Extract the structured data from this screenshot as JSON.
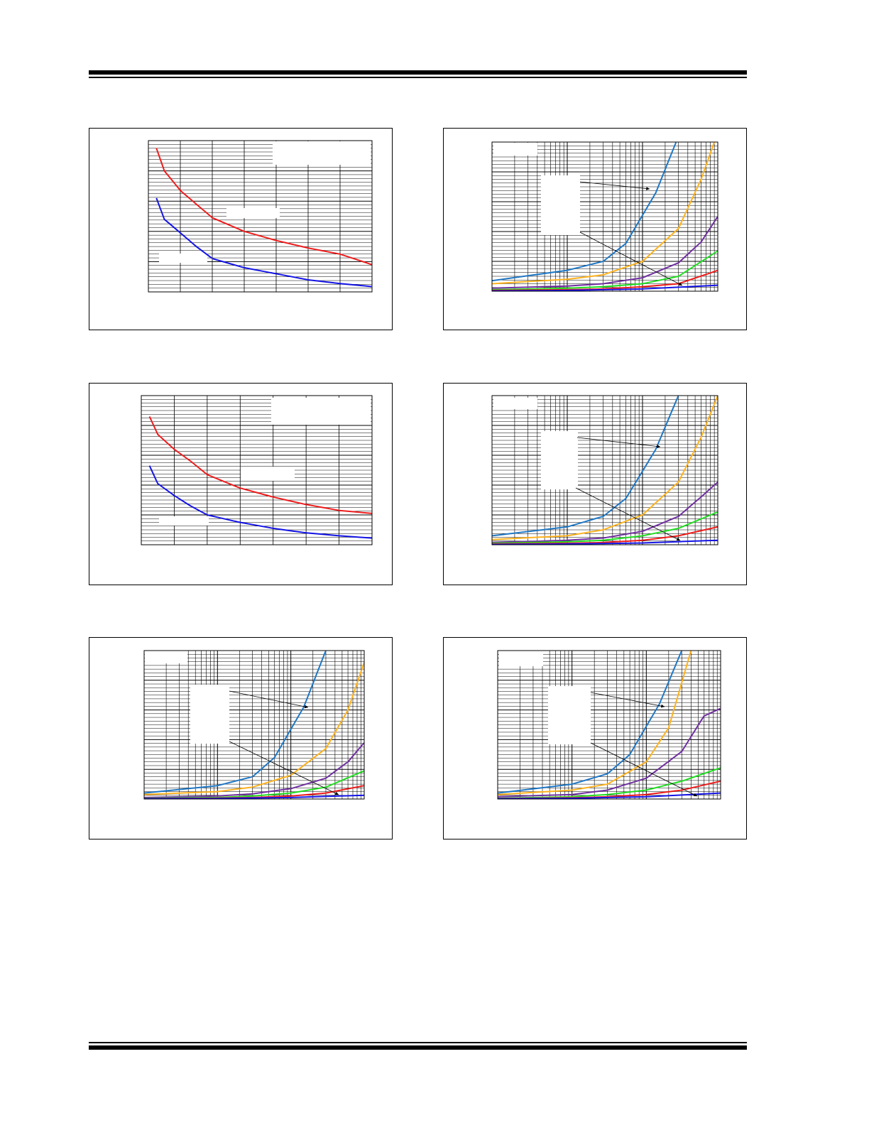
{
  "colors": {
    "red": "#ee1c1c",
    "blue": "#1414e6",
    "steel": "#1f77c4",
    "orange": "#ffb21e",
    "purple": "#7030a0",
    "green": "#22dd22"
  },
  "chart_data": [
    {
      "type": "line",
      "xscale": "linear",
      "xlim": [
        0,
        7
      ],
      "ylim": [
        0,
        10
      ],
      "grid": true,
      "legend": "top-right",
      "series": [
        {
          "color": "#ee1c1c",
          "x": [
            0.25,
            0.5,
            1,
            1.5,
            2,
            3,
            4,
            5,
            6,
            7
          ],
          "y": [
            9.5,
            8.0,
            6.7,
            5.8,
            4.9,
            4.0,
            3.4,
            2.9,
            2.5,
            1.8
          ]
        },
        {
          "color": "#1414e6",
          "x": [
            0.25,
            0.5,
            1,
            1.5,
            2,
            3,
            4,
            5,
            6,
            7
          ],
          "y": [
            6.2,
            4.8,
            3.9,
            3.0,
            2.2,
            1.6,
            1.2,
            0.8,
            0.55,
            0.35
          ]
        }
      ]
    },
    {
      "type": "line",
      "xscale": "log",
      "xlim": [
        1,
        1000
      ],
      "ylim": [
        0,
        10
      ],
      "grid": true,
      "series": [
        {
          "color": "#1f77c4",
          "x": [
            1,
            10,
            30,
            60,
            150,
            280
          ],
          "y": [
            0.7,
            1.4,
            2.0,
            3.2,
            6.6,
            10
          ]
        },
        {
          "color": "#ffb21e",
          "x": [
            1,
            10,
            30,
            100,
            300,
            600,
            900
          ],
          "y": [
            0.5,
            0.8,
            1.1,
            2.0,
            4.2,
            7.5,
            10
          ]
        },
        {
          "color": "#7030a0",
          "x": [
            1,
            10,
            30,
            100,
            300,
            600,
            1000
          ],
          "y": [
            0.2,
            0.35,
            0.5,
            0.9,
            1.9,
            3.3,
            5.0
          ]
        },
        {
          "color": "#22dd22",
          "x": [
            1,
            10,
            30,
            100,
            300,
            1000
          ],
          "y": [
            0.1,
            0.2,
            0.3,
            0.5,
            1.0,
            2.7
          ]
        },
        {
          "color": "#ee1c1c",
          "x": [
            1,
            10,
            30,
            100,
            300,
            1000
          ],
          "y": [
            0.05,
            0.1,
            0.15,
            0.3,
            0.5,
            1.4
          ]
        },
        {
          "color": "#1414e6",
          "x": [
            1,
            10,
            100,
            1000
          ],
          "y": [
            0.02,
            0.05,
            0.15,
            0.4
          ]
        }
      ]
    },
    {
      "type": "line",
      "xscale": "linear",
      "xlim": [
        0,
        7
      ],
      "ylim": [
        0,
        10
      ],
      "grid": true,
      "legend": "top-right",
      "series": [
        {
          "color": "#ee1c1c",
          "x": [
            0.25,
            0.5,
            1,
            1.5,
            2,
            3,
            4,
            5,
            6,
            7
          ],
          "y": [
            8.6,
            7.4,
            6.4,
            5.6,
            4.7,
            3.8,
            3.2,
            2.7,
            2.3,
            2.1
          ]
        },
        {
          "color": "#1414e6",
          "x": [
            0.25,
            0.5,
            1,
            1.5,
            2,
            3,
            4,
            5,
            6,
            7
          ],
          "y": [
            5.3,
            4.1,
            3.3,
            2.6,
            2.0,
            1.5,
            1.1,
            0.8,
            0.6,
            0.45
          ]
        }
      ]
    },
    {
      "type": "line",
      "xscale": "log",
      "xlim": [
        1,
        1000
      ],
      "ylim": [
        0,
        10
      ],
      "grid": true,
      "series": [
        {
          "color": "#1f77c4",
          "x": [
            1,
            10,
            30,
            60,
            150,
            300
          ],
          "y": [
            0.6,
            1.2,
            1.9,
            3.1,
            6.4,
            10
          ]
        },
        {
          "color": "#ffb21e",
          "x": [
            1,
            10,
            30,
            100,
            300,
            600,
            1000
          ],
          "y": [
            0.35,
            0.6,
            1.0,
            2.0,
            4.2,
            7.2,
            10
          ]
        },
        {
          "color": "#7030a0",
          "x": [
            1,
            10,
            30,
            100,
            300,
            600,
            1000
          ],
          "y": [
            0.15,
            0.3,
            0.45,
            0.9,
            1.9,
            3.2,
            4.2
          ]
        },
        {
          "color": "#22dd22",
          "x": [
            1,
            10,
            30,
            100,
            300,
            1000
          ],
          "y": [
            0.1,
            0.2,
            0.3,
            0.6,
            1.1,
            2.2
          ]
        },
        {
          "color": "#ee1c1c",
          "x": [
            1,
            10,
            30,
            100,
            300,
            1000
          ],
          "y": [
            0.05,
            0.1,
            0.15,
            0.3,
            0.6,
            1.2
          ]
        },
        {
          "color": "#1414e6",
          "x": [
            1,
            10,
            100,
            1000
          ],
          "y": [
            0.02,
            0.05,
            0.12,
            0.3
          ]
        }
      ]
    },
    {
      "type": "line",
      "xscale": "log",
      "xlim": [
        1,
        1000
      ],
      "ylim": [
        0,
        10
      ],
      "grid": true,
      "series": [
        {
          "color": "#1f77c4",
          "x": [
            1,
            10,
            30,
            60,
            150,
            300
          ],
          "y": [
            0.4,
            0.9,
            1.5,
            2.8,
            6.2,
            10
          ]
        },
        {
          "color": "#ffb21e",
          "x": [
            1,
            10,
            30,
            100,
            300,
            600,
            1000
          ],
          "y": [
            0.3,
            0.5,
            0.8,
            1.6,
            3.4,
            6.0,
            9.2
          ]
        },
        {
          "color": "#7030a0",
          "x": [
            1,
            10,
            30,
            100,
            300,
            600,
            1000
          ],
          "y": [
            0.1,
            0.2,
            0.35,
            0.7,
            1.4,
            2.5,
            3.8
          ]
        },
        {
          "color": "#22dd22",
          "x": [
            1,
            10,
            30,
            100,
            300,
            1000
          ],
          "y": [
            0.05,
            0.1,
            0.2,
            0.4,
            0.8,
            1.9
          ]
        },
        {
          "color": "#ee1c1c",
          "x": [
            1,
            10,
            30,
            100,
            300,
            1000
          ],
          "y": [
            0.03,
            0.06,
            0.1,
            0.2,
            0.4,
            0.9
          ]
        },
        {
          "color": "#1414e6",
          "x": [
            1,
            10,
            100,
            1000
          ],
          "y": [
            0.02,
            0.04,
            0.1,
            0.25
          ]
        }
      ]
    },
    {
      "type": "line",
      "xscale": "log",
      "xlim": [
        1,
        1000
      ],
      "ylim": [
        0,
        10
      ],
      "grid": true,
      "series": [
        {
          "color": "#1f77c4",
          "x": [
            1,
            10,
            30,
            60,
            150,
            300
          ],
          "y": [
            0.4,
            1.0,
            1.7,
            3.0,
            6.4,
            10
          ]
        },
        {
          "color": "#ffb21e",
          "x": [
            1,
            10,
            30,
            100,
            200,
            400
          ],
          "y": [
            0.3,
            0.6,
            1.0,
            2.5,
            4.8,
            10
          ]
        },
        {
          "color": "#7030a0",
          "x": [
            1,
            10,
            30,
            100,
            300,
            600,
            1000
          ],
          "y": [
            0.15,
            0.3,
            0.6,
            1.4,
            3.2,
            5.6,
            6.1
          ]
        },
        {
          "color": "#22dd22",
          "x": [
            1,
            10,
            30,
            100,
            300,
            1000
          ],
          "y": [
            0.05,
            0.15,
            0.3,
            0.6,
            1.2,
            2.1
          ]
        },
        {
          "color": "#ee1c1c",
          "x": [
            1,
            10,
            30,
            100,
            300,
            1000
          ],
          "y": [
            0.03,
            0.08,
            0.15,
            0.3,
            0.6,
            1.2
          ]
        },
        {
          "color": "#1414e6",
          "x": [
            1,
            10,
            100,
            1000
          ],
          "y": [
            0.02,
            0.05,
            0.15,
            0.4
          ]
        }
      ]
    }
  ]
}
